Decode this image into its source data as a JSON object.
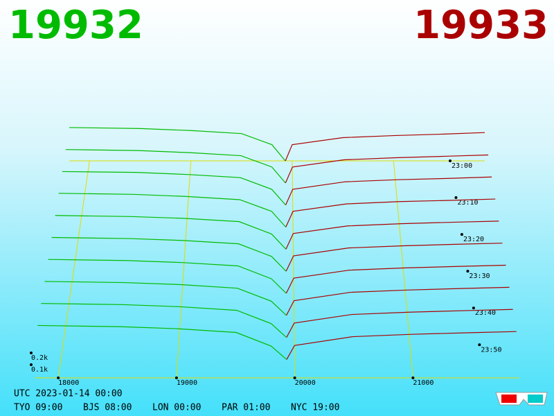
{
  "chart_data": {
    "type": "depth3d",
    "bid": 19932,
    "ask": 19933,
    "bid_color": "#00bb00",
    "ask_color": "#aa0000",
    "utc": "UTC 2023-01-14 00:00",
    "clocks": [
      "TYO 09:00",
      "BJS 08:00",
      "LON 00:00",
      "PAR 01:00",
      "NYC 19:00"
    ],
    "xlim": [
      17800,
      21900
    ],
    "xticks": [
      18000,
      19000,
      20000,
      21000
    ],
    "tlim": [
      0,
      59
    ],
    "tticks": [
      {
        "value": 0,
        "label": "23:00"
      },
      {
        "value": 10,
        "label": "23:10"
      },
      {
        "value": 20,
        "label": "23:20"
      },
      {
        "value": 30,
        "label": "23:30"
      },
      {
        "value": 40,
        "label": "23:40"
      },
      {
        "value": 50,
        "label": "23:50"
      }
    ],
    "zticks": [
      {
        "value": 100,
        "label": "0.1k"
      },
      {
        "value": 200,
        "label": "0.2k"
      }
    ],
    "bid_prices": [
      17800,
      18500,
      19000,
      19500,
      19800,
      19932
    ],
    "ask_prices": [
      19933,
      20000,
      20500,
      21000,
      21500,
      21900
    ],
    "slices": [
      {
        "time": 0,
        "bids": [
          330,
          320,
          300,
          270,
          160,
          0
        ],
        "asks": [
          0,
          160,
          230,
          250,
          265,
          280
        ]
      },
      {
        "time": 6,
        "bids": [
          325,
          315,
          295,
          265,
          155,
          0
        ],
        "asks": [
          0,
          155,
          225,
          245,
          260,
          272
        ]
      },
      {
        "time": 12,
        "bids": [
          320,
          312,
          292,
          262,
          150,
          0
        ],
        "asks": [
          0,
          150,
          222,
          242,
          255,
          268
        ]
      },
      {
        "time": 18,
        "bids": [
          318,
          308,
          288,
          258,
          148,
          0
        ],
        "asks": [
          0,
          148,
          218,
          240,
          252,
          264
        ]
      },
      {
        "time": 24,
        "bids": [
          312,
          302,
          285,
          255,
          140,
          0
        ],
        "asks": [
          0,
          145,
          215,
          236,
          250,
          260
        ]
      },
      {
        "time": 30,
        "bids": [
          308,
          298,
          280,
          250,
          135,
          0
        ],
        "asks": [
          0,
          140,
          212,
          232,
          246,
          256
        ]
      },
      {
        "time": 36,
        "bids": [
          304,
          294,
          276,
          246,
          130,
          0
        ],
        "asks": [
          0,
          136,
          208,
          228,
          242,
          252
        ]
      },
      {
        "time": 42,
        "bids": [
          300,
          290,
          272,
          240,
          125,
          0
        ],
        "asks": [
          0,
          130,
          204,
          224,
          238,
          248
        ]
      },
      {
        "time": 48,
        "bids": [
          296,
          286,
          268,
          236,
          120,
          0
        ],
        "asks": [
          0,
          125,
          200,
          220,
          234,
          244
        ]
      },
      {
        "time": 54,
        "bids": [
          292,
          282,
          264,
          232,
          115,
          0
        ],
        "asks": [
          0,
          120,
          196,
          216,
          230,
          240
        ]
      }
    ]
  }
}
